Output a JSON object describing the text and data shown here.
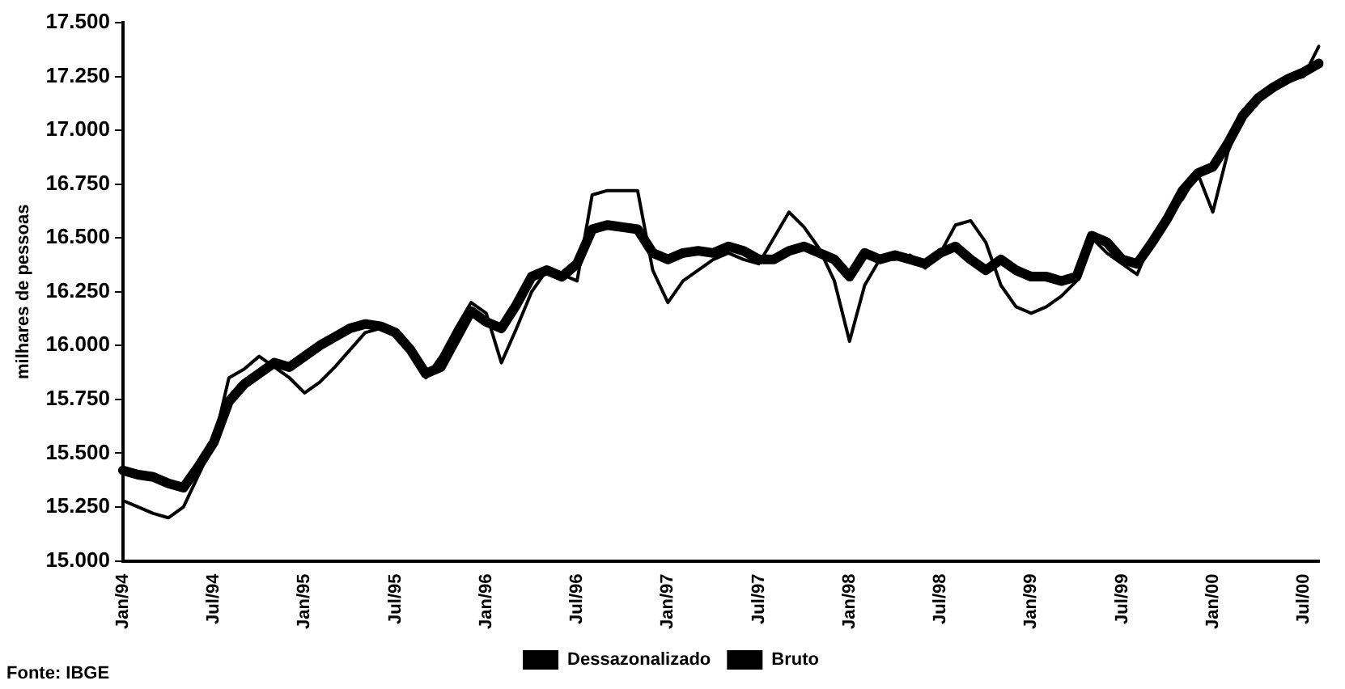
{
  "chart_data": {
    "type": "line",
    "ylabel": "milhares de pessoas",
    "categories": [
      "Jan/94",
      null,
      null,
      null,
      null,
      null,
      "Jul/94",
      null,
      null,
      null,
      null,
      null,
      "Jan/95",
      null,
      null,
      null,
      null,
      null,
      "Jul/95",
      null,
      null,
      null,
      null,
      null,
      "Jan/96",
      null,
      null,
      null,
      null,
      null,
      "Jul/96",
      null,
      null,
      null,
      null,
      null,
      "Jan/97",
      null,
      null,
      null,
      null,
      null,
      "Jul/97",
      null,
      null,
      null,
      null,
      null,
      "Jan/98",
      null,
      null,
      null,
      null,
      null,
      "Jul/98",
      null,
      null,
      null,
      null,
      null,
      "Jan/99",
      null,
      null,
      null,
      null,
      null,
      "Jul/99",
      null,
      null,
      null,
      null,
      null,
      "Jan/00",
      null,
      null,
      null,
      null,
      null,
      "Jul/00",
      null
    ],
    "series": [
      {
        "name": "Dessazonalizado",
        "color": "#000000",
        "values": [
          15420,
          15400,
          15390,
          15360,
          15340,
          15440,
          15550,
          15740,
          15820,
          15870,
          15920,
          15900,
          15950,
          16000,
          16040,
          16080,
          16100,
          16090,
          16060,
          15980,
          15870,
          15900,
          16030,
          16160,
          16110,
          16080,
          16190,
          16320,
          16350,
          16320,
          16380,
          16540,
          16560,
          16550,
          16540,
          16430,
          16400,
          16430,
          16440,
          16430,
          16460,
          16440,
          16400,
          16400,
          16440,
          16460,
          16430,
          16400,
          16320,
          16430,
          16400,
          16420,
          16400,
          16380,
          16430,
          16460,
          16400,
          16350,
          16400,
          16350,
          16320,
          16320,
          16300,
          16320,
          16510,
          16480,
          16400,
          16380,
          16480,
          16590,
          16720,
          16800,
          16830,
          16940,
          17070,
          17150,
          17200,
          17240,
          17270,
          17310
        ]
      },
      {
        "name": "Bruto",
        "color": "#000000",
        "values": [
          15280,
          15250,
          15220,
          15200,
          15250,
          15400,
          15550,
          15850,
          15890,
          15950,
          15900,
          15850,
          15780,
          15830,
          15900,
          15980,
          16060,
          16080,
          16060,
          15960,
          15850,
          15950,
          16080,
          16200,
          16150,
          15920,
          16080,
          16250,
          16350,
          16330,
          16300,
          16700,
          16720,
          16720,
          16720,
          16350,
          16200,
          16300,
          16350,
          16400,
          16430,
          16400,
          16380,
          16500,
          16620,
          16550,
          16450,
          16300,
          16020,
          16280,
          16400,
          16400,
          16420,
          16360,
          16430,
          16560,
          16580,
          16480,
          16280,
          16180,
          16150,
          16180,
          16230,
          16300,
          16500,
          16430,
          16380,
          16330,
          16500,
          16600,
          16680,
          16800,
          16620,
          16900,
          17070,
          17150,
          17200,
          17230,
          17250,
          17390
        ]
      }
    ],
    "ylim": [
      15000,
      17500
    ],
    "yticks": [
      {
        "value": 15000,
        "label": "15.000"
      },
      {
        "value": 15250,
        "label": "15.250"
      },
      {
        "value": 15500,
        "label": "15.500"
      },
      {
        "value": 15750,
        "label": "15.750"
      },
      {
        "value": 16000,
        "label": "16.000"
      },
      {
        "value": 16250,
        "label": "16.250"
      },
      {
        "value": 16500,
        "label": "16.500"
      },
      {
        "value": 16750,
        "label": "16.750"
      },
      {
        "value": 17000,
        "label": "17.000"
      },
      {
        "value": 17250,
        "label": "17.250"
      },
      {
        "value": 17500,
        "label": "17.500"
      }
    ],
    "grid": false,
    "legend": "bottom",
    "marker": "none",
    "line_style": "solid",
    "annotations": [
      "Fonte: IBGE"
    ]
  }
}
